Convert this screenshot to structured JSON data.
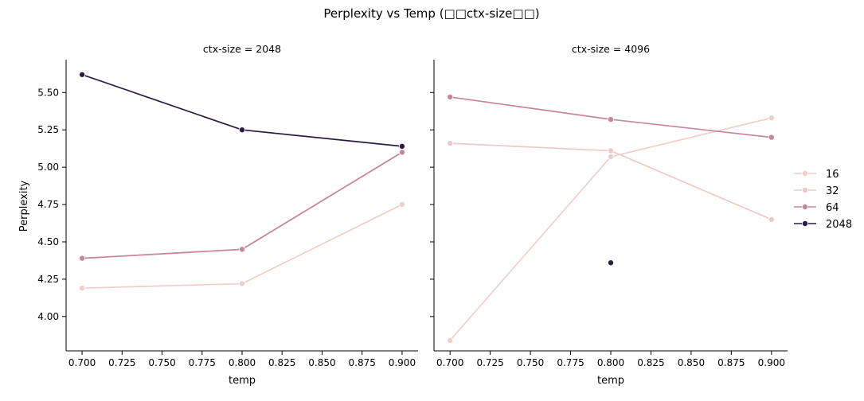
{
  "title": "Perplexity vs Temp (□□ctx-size□□)",
  "colors": {
    "16": "#efd0c8",
    "32": "#eacbc7",
    "64": "#c98699",
    "2048": "#2b1d3f"
  },
  "legend": {
    "entries": [
      {
        "label": "16",
        "color_key": "16"
      },
      {
        "label": "32",
        "color_key": "32"
      },
      {
        "label": "64",
        "color_key": "64"
      },
      {
        "label": "2048",
        "color_key": "2048"
      }
    ]
  },
  "chart_data": [
    {
      "type": "line",
      "title": "ctx-size = 2048",
      "xlabel": "temp",
      "ylabel": "Perplexity",
      "xlim": [
        0.69,
        0.91
      ],
      "ylim": [
        3.77,
        5.72
      ],
      "xticks": [
        "0.700",
        "0.725",
        "0.750",
        "0.775",
        "0.800",
        "0.825",
        "0.850",
        "0.875",
        "0.900"
      ],
      "yticks": [
        "4.00",
        "4.25",
        "4.50",
        "4.75",
        "5.00",
        "5.25",
        "5.50"
      ],
      "series": [
        {
          "name": "16",
          "x": [
            0.7,
            0.8,
            0.9
          ],
          "y": [
            4.19,
            4.22,
            4.75
          ]
        },
        {
          "name": "32",
          "x": [
            0.7,
            0.8,
            0.9
          ],
          "y": [
            4.39,
            4.45,
            5.1
          ]
        },
        {
          "name": "64",
          "x": [
            0.7,
            0.8,
            0.9
          ],
          "y": [
            4.39,
            4.45,
            5.1
          ]
        },
        {
          "name": "2048",
          "x": [
            0.7,
            0.8,
            0.9
          ],
          "y": [
            5.62,
            5.25,
            5.14
          ]
        }
      ]
    },
    {
      "type": "line",
      "title": "ctx-size = 4096",
      "xlabel": "temp",
      "ylabel": "",
      "xlim": [
        0.69,
        0.91
      ],
      "ylim": [
        3.77,
        5.72
      ],
      "xticks": [
        "0.700",
        "0.725",
        "0.750",
        "0.775",
        "0.800",
        "0.825",
        "0.850",
        "0.875",
        "0.900"
      ],
      "yticks": [],
      "series": [
        {
          "name": "16",
          "x": [
            0.7,
            0.8,
            0.9
          ],
          "y": [
            3.84,
            5.07,
            5.33
          ]
        },
        {
          "name": "32",
          "x": [
            0.7,
            0.8,
            0.9
          ],
          "y": [
            5.16,
            5.11,
            4.65
          ]
        },
        {
          "name": "64",
          "x": [
            0.7,
            0.8,
            0.9
          ],
          "y": [
            5.47,
            5.32,
            5.2
          ]
        },
        {
          "name": "2048",
          "x": [
            0.8
          ],
          "y": [
            4.36
          ]
        }
      ]
    }
  ]
}
